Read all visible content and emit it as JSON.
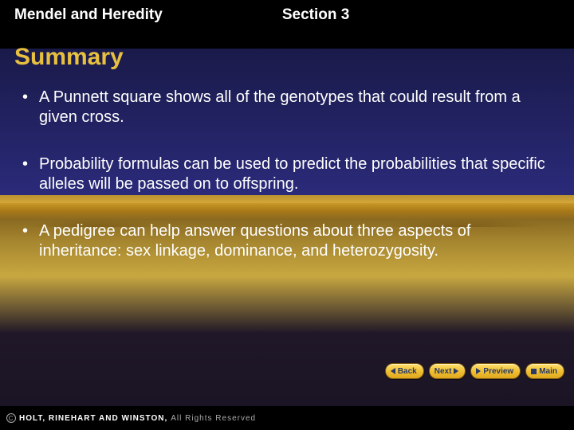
{
  "header": {
    "chapter": "Mendel and Heredity",
    "section": "Section 3"
  },
  "title": "Summary",
  "bullets": [
    "A Punnett square shows all of the genotypes that could result from a given cross.",
    "Probability formulas can be used to predict the probabilities that specific alleles will be passed on to offspring.",
    "A pedigree can help answer questions about three aspects of inheritance: sex linkage, dominance, and heterozygosity."
  ],
  "nav": {
    "back": "Back",
    "next": "Next",
    "preview": "Preview",
    "main": "Main"
  },
  "copyright": {
    "publisher": "HOLT, RINEHART AND WINSTON,",
    "rights": "All Rights Reserved"
  },
  "colors": {
    "title_color": "#e8c040",
    "text_color": "#ffffff",
    "button_bg": "#f0c030",
    "button_text": "#2a3a6a"
  }
}
